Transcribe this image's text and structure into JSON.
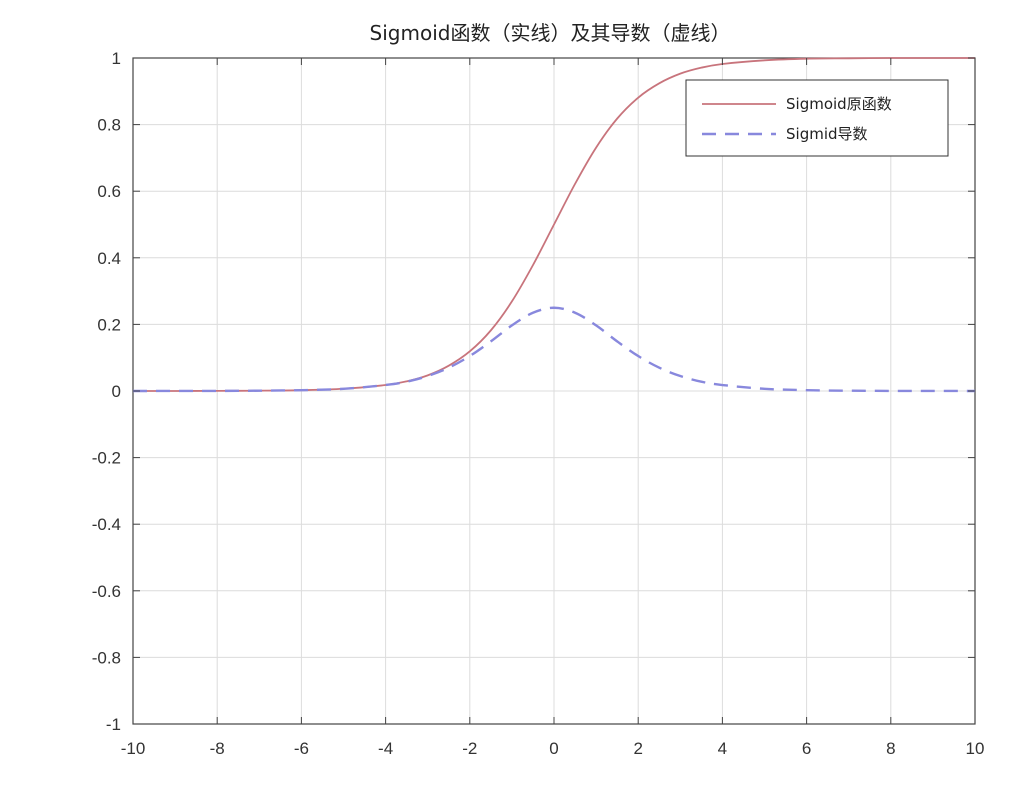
{
  "chart_data": {
    "type": "line",
    "title": "Sigmoid函数（实线）及其导数（虚线）",
    "xlabel": "",
    "ylabel": "",
    "xlim": [
      -10,
      10
    ],
    "ylim": [
      -1,
      1
    ],
    "grid": true,
    "legend_position": "top-right",
    "x_ticks": [
      "-10",
      "-8",
      "-6",
      "-4",
      "-2",
      "0",
      "2",
      "4",
      "6",
      "8",
      "10"
    ],
    "y_ticks": [
      "-1",
      "-0.8",
      "-0.6",
      "-0.4",
      "-0.2",
      "0",
      "0.2",
      "0.4",
      "0.6",
      "0.8",
      "1"
    ],
    "x": [
      -10,
      -9,
      -8,
      -7,
      -6,
      -5,
      -4,
      -3.5,
      -3,
      -2.5,
      -2,
      -1.5,
      -1,
      -0.5,
      0,
      0.5,
      1,
      1.5,
      2,
      2.5,
      3,
      3.5,
      4,
      5,
      6,
      7,
      8,
      9,
      10
    ],
    "series": [
      {
        "name": "Sigmoid原函数",
        "style": "solid",
        "color": "#c8747c",
        "values": [
          0.0,
          0.0001,
          0.0003,
          0.0009,
          0.0025,
          0.0067,
          0.018,
          0.029,
          0.047,
          0.076,
          0.119,
          0.182,
          0.269,
          0.378,
          0.5,
          0.622,
          0.731,
          0.818,
          0.881,
          0.924,
          0.953,
          0.971,
          0.982,
          0.993,
          0.998,
          0.999,
          1.0,
          1.0,
          1.0
        ]
      },
      {
        "name": "Sigmid导数",
        "style": "dashed",
        "color": "#8888dd",
        "values": [
          0.0,
          0.0001,
          0.0003,
          0.0009,
          0.0025,
          0.0066,
          0.018,
          0.028,
          0.045,
          0.07,
          0.105,
          0.149,
          0.197,
          0.235,
          0.25,
          0.235,
          0.197,
          0.149,
          0.105,
          0.07,
          0.045,
          0.028,
          0.018,
          0.0066,
          0.0025,
          0.0009,
          0.0003,
          0.0001,
          0.0
        ]
      }
    ]
  }
}
